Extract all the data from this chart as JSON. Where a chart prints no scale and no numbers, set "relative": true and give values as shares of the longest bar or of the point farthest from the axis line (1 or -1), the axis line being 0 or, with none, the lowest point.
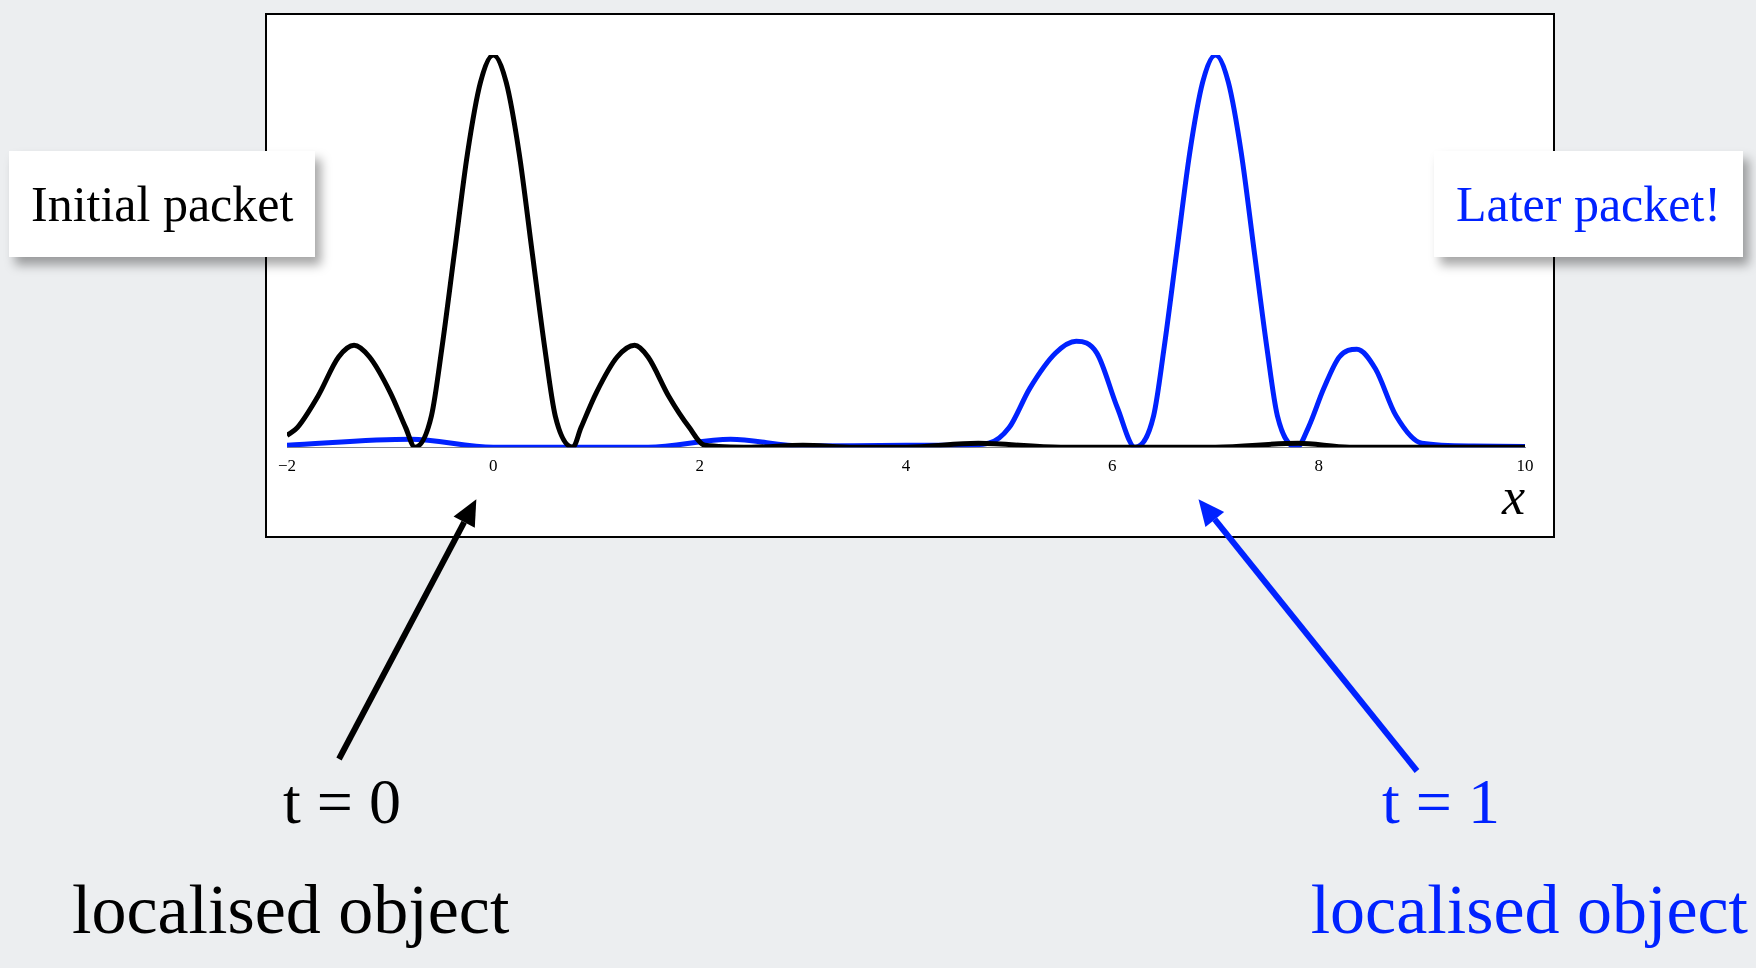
{
  "chart_data": {
    "type": "line",
    "relative": true,
    "xlabel": "x",
    "xlim": [
      -2,
      10
    ],
    "xticks": [
      -2,
      0,
      2,
      4,
      6,
      8,
      10
    ],
    "grid": false,
    "legend": false,
    "marker": "none",
    "series": [
      {
        "name": "Initial packet",
        "color": "#000000",
        "x": [
          -2,
          -1.9,
          -1.7,
          -1.5,
          -1.35,
          -1.2,
          -1.0,
          -0.85,
          -0.76,
          -0.6,
          -0.5,
          -0.375,
          -0.25,
          -0.125,
          0,
          0.125,
          0.25,
          0.375,
          0.5,
          0.6,
          0.77,
          0.85,
          1.0,
          1.2,
          1.37,
          1.5,
          1.7,
          1.9,
          2.05,
          2.5,
          3,
          3.5,
          4,
          4.7,
          5.5,
          6.2,
          7,
          7.8,
          8.3,
          9,
          10
        ],
        "values": [
          0.03,
          0.05,
          0.13,
          0.23,
          0.26,
          0.23,
          0.14,
          0.05,
          0,
          0.08,
          0.25,
          0.5,
          0.75,
          0.93,
          1,
          0.93,
          0.75,
          0.5,
          0.25,
          0.08,
          0,
          0.05,
          0.14,
          0.23,
          0.26,
          0.23,
          0.13,
          0.05,
          0.005,
          0,
          0.005,
          0,
          0,
          0.01,
          0,
          0,
          0,
          0.01,
          0,
          0,
          0
        ]
      },
      {
        "name": "Later packet!",
        "color": "#0022ff",
        "x": [
          -2,
          -0.8,
          0,
          1.5,
          2.3,
          3,
          4,
          4.5,
          4.8,
          5.0,
          5.2,
          5.45,
          5.65,
          5.85,
          6.05,
          6.22,
          6.4,
          6.5,
          6.625,
          6.75,
          6.875,
          7,
          7.125,
          7.25,
          7.375,
          7.5,
          7.6,
          7.79,
          7.9,
          8.05,
          8.2,
          8.37,
          8.55,
          8.75,
          9,
          9.5,
          10
        ],
        "values": [
          0.005,
          0.02,
          0,
          0,
          0.02,
          0.003,
          0.005,
          0.005,
          0.01,
          0.05,
          0.15,
          0.24,
          0.27,
          0.24,
          0.1,
          0,
          0.08,
          0.25,
          0.5,
          0.75,
          0.93,
          1,
          0.93,
          0.75,
          0.5,
          0.25,
          0.08,
          0,
          0.05,
          0.15,
          0.23,
          0.25,
          0.2,
          0.08,
          0.01,
          0.003,
          0.002
        ]
      }
    ],
    "annotations": [
      "t = 0",
      "localised object",
      "t = 1",
      "localised object"
    ]
  }
}
